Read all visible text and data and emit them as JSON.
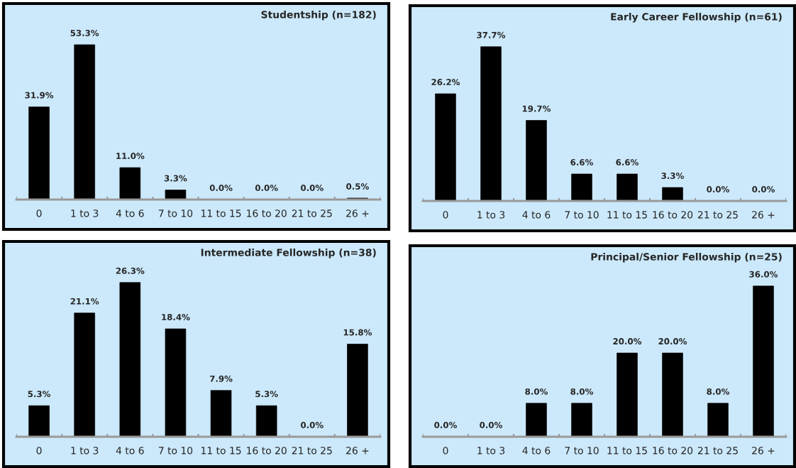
{
  "chart_data": [
    {
      "type": "bar",
      "title": "Studentship (n=182)",
      "categories": [
        "0",
        "1 to 3",
        "4 to 6",
        "7 to 10",
        "11 to 15",
        "16 to 20",
        "21 to 25",
        "26 +"
      ],
      "values": [
        31.9,
        53.3,
        11.0,
        3.3,
        0.0,
        0.0,
        0.0,
        0.5
      ],
      "value_labels": [
        "31.9%",
        "53.3%",
        "11.0%",
        "3.3%",
        "0.0%",
        "0.0%",
        "0.0%",
        "0.5%"
      ],
      "color": "#000000"
    },
    {
      "type": "bar",
      "title": "Early Career Fellowship (n=61)",
      "categories": [
        "0",
        "1 to 3",
        "4 to 6",
        "7 to 10",
        "11 to 15",
        "16 to 20",
        "21 to 25",
        "26 +"
      ],
      "values": [
        26.2,
        37.7,
        19.7,
        6.6,
        6.6,
        3.3,
        0.0,
        0.0
      ],
      "value_labels": [
        "26.2%",
        "37.7%",
        "19.7%",
        "6.6%",
        "6.6%",
        "3.3%",
        "0.0%",
        "0.0%"
      ],
      "color": "#000000"
    },
    {
      "type": "bar",
      "title": "Intermediate Fellowship (n=38)",
      "categories": [
        "0",
        "1 to 3",
        "4 to 6",
        "7 to 10",
        "11 to 15",
        "16 to 20",
        "21 to 25",
        "26 +"
      ],
      "values": [
        5.3,
        21.1,
        26.3,
        18.4,
        7.9,
        5.3,
        0.0,
        15.8
      ],
      "value_labels": [
        "5.3%",
        "21.1%",
        "26.3%",
        "18.4%",
        "7.9%",
        "5.3%",
        "0.0%",
        "15.8%"
      ],
      "color": "#000000"
    },
    {
      "type": "bar",
      "title": "Principal/Senior Fellowship (n=25)",
      "categories": [
        "0",
        "1 to 3",
        "4 to 6",
        "7 to 10",
        "11 to 15",
        "16 to 20",
        "21 to 25",
        "26 +"
      ],
      "values": [
        0.0,
        0.0,
        8.0,
        8.0,
        20.0,
        20.0,
        8.0,
        36.0
      ],
      "value_labels": [
        "0.0%",
        "0.0%",
        "8.0%",
        "8.0%",
        "20.0%",
        "20.0%",
        "8.0%",
        "36.0%"
      ],
      "color": "#000000"
    }
  ]
}
